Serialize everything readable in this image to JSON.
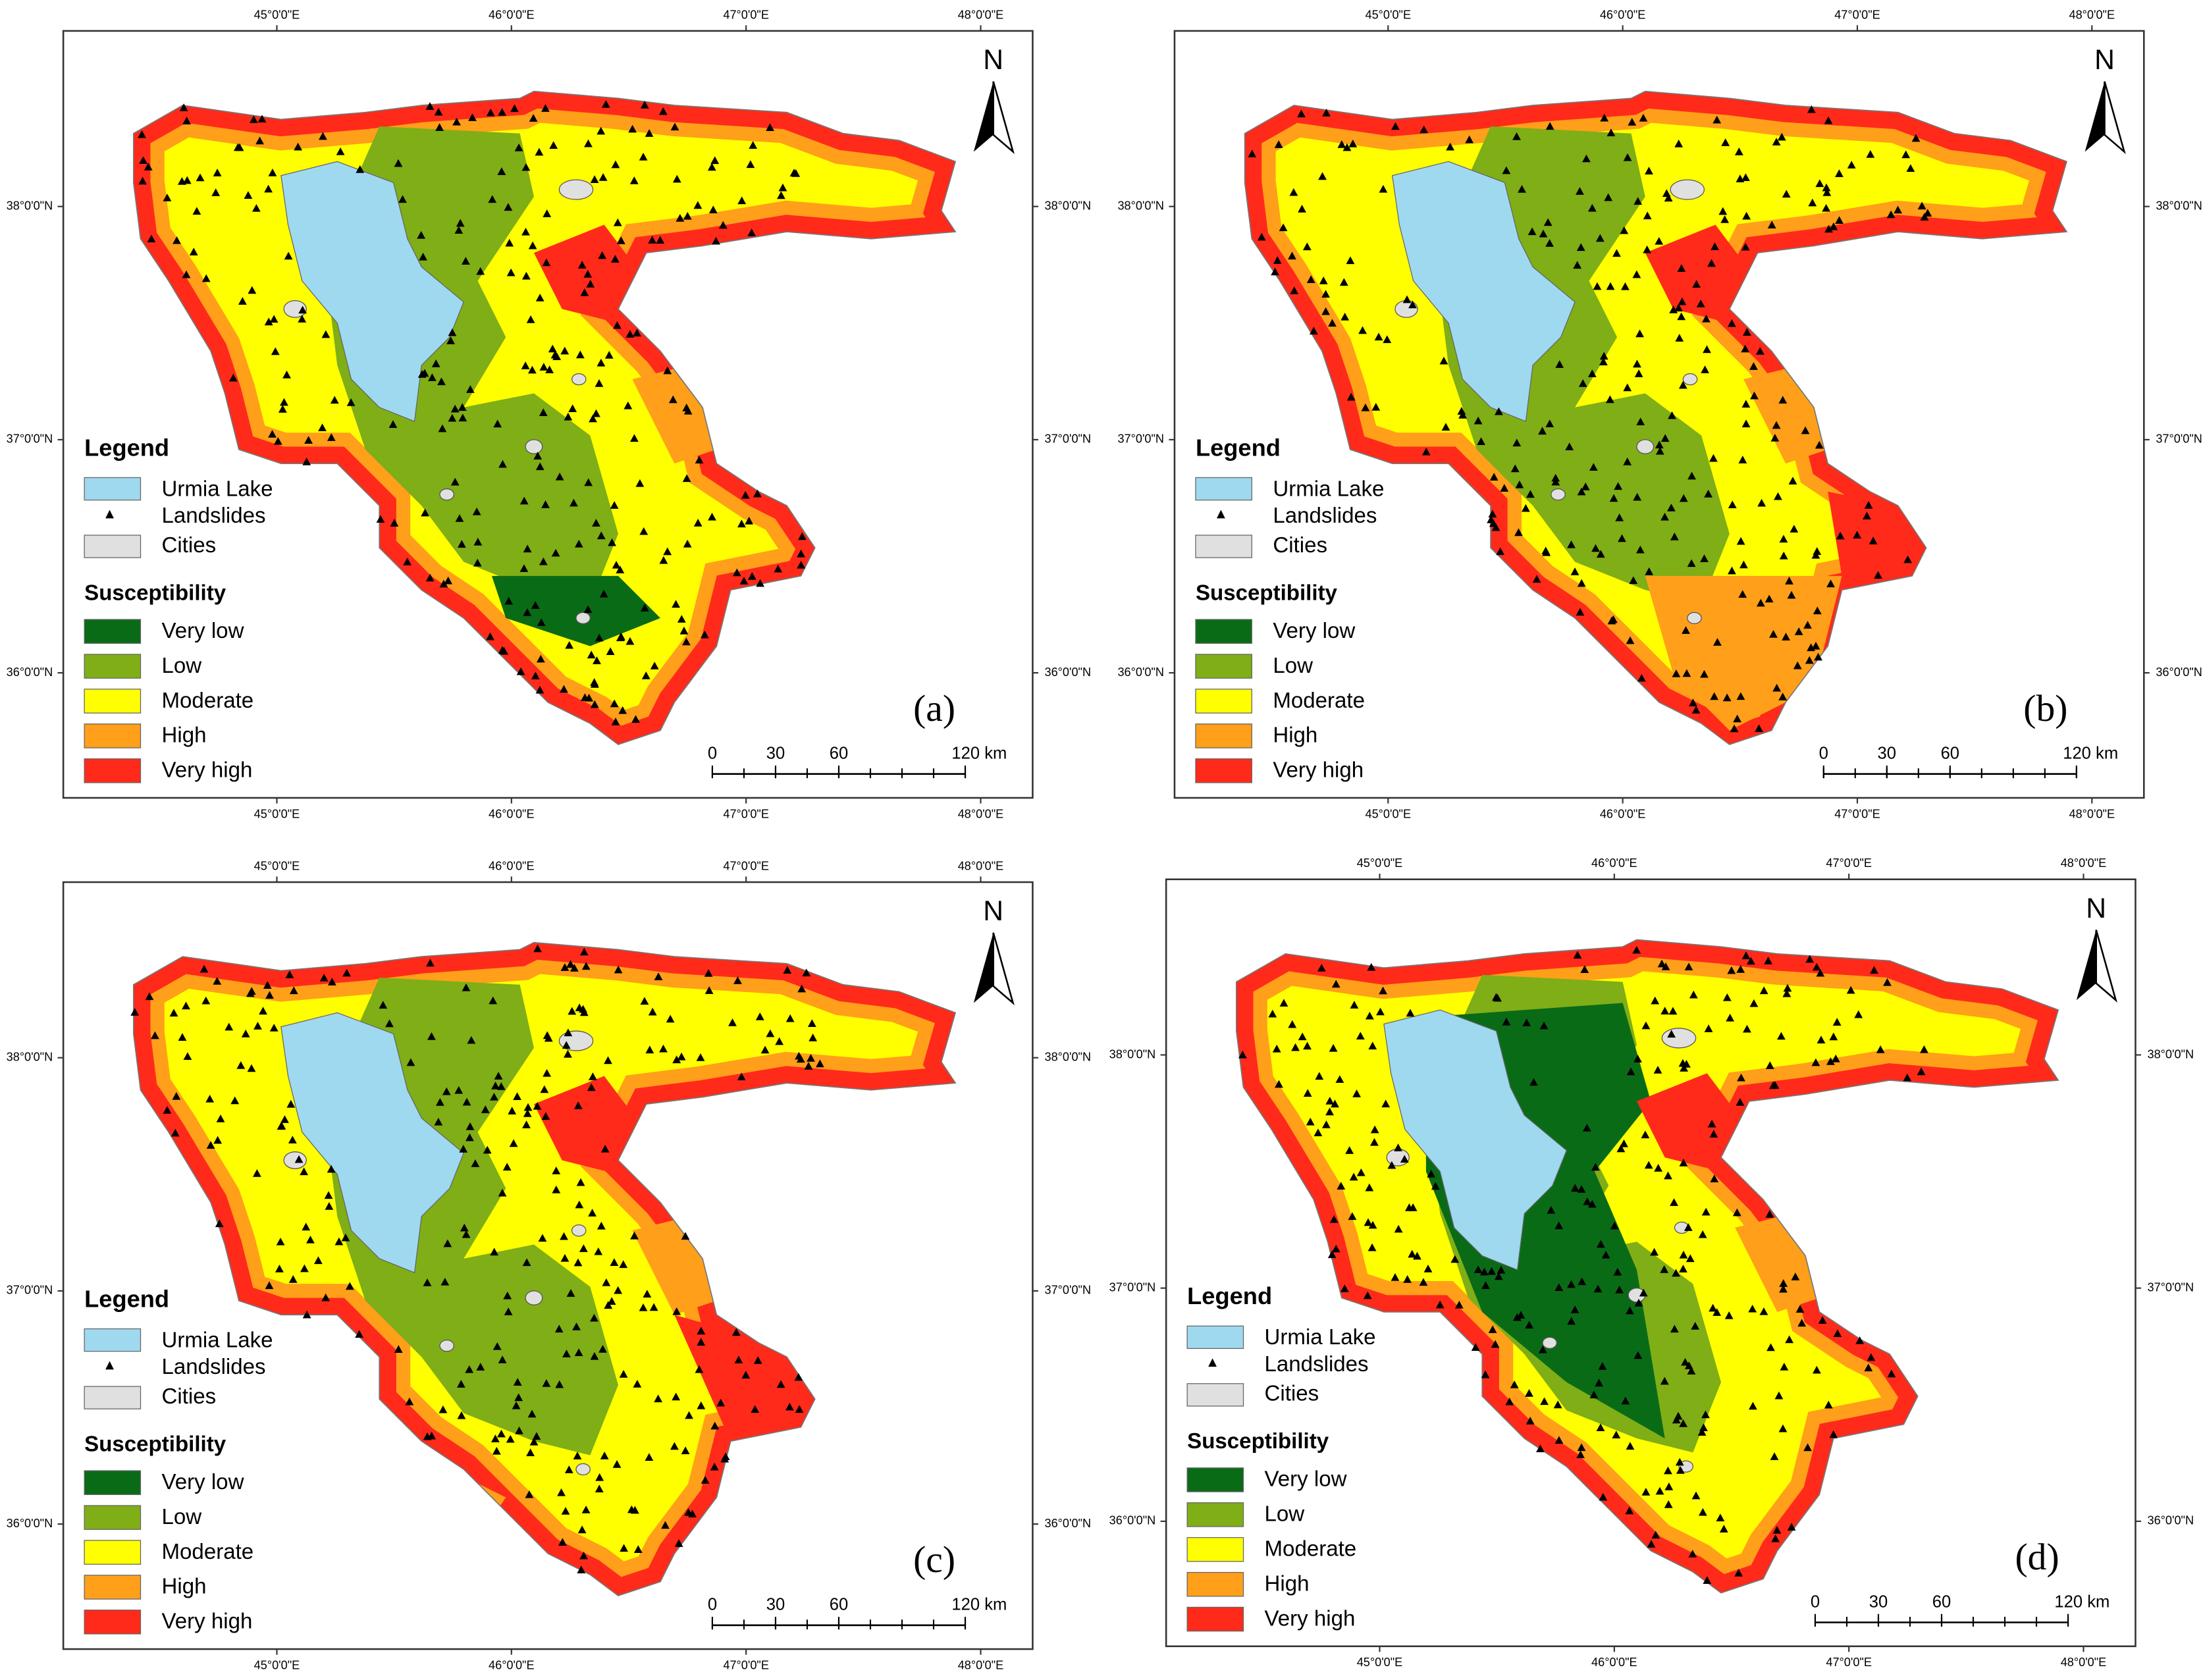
{
  "panels": [
    {
      "label": "(a)"
    },
    {
      "label": "(b)"
    },
    {
      "label": "(c)"
    },
    {
      "label": "(d)"
    }
  ],
  "map": {
    "longitude_ticks": [
      {
        "value": 45,
        "label": "45°0'0\"E"
      },
      {
        "value": 46,
        "label": "46°0'0\"E"
      },
      {
        "value": 47,
        "label": "47°0'0\"E"
      },
      {
        "value": 48,
        "label": "48°0'0\"E"
      }
    ],
    "latitude_ticks": [
      {
        "value": 38,
        "label": "38°0'0\"N"
      },
      {
        "value": 37,
        "label": "37°0'0\"N"
      },
      {
        "value": 36,
        "label": "36°0'0\"N"
      }
    ],
    "north": "N",
    "legend": {
      "title": "Legend",
      "lake": {
        "label": "Urmia Lake",
        "color": "#9fd9f0"
      },
      "landslides": {
        "label": "Landslides"
      },
      "cities": {
        "label": "Cities",
        "color": "#e0e0e0"
      },
      "susceptibility_title": "Susceptibility",
      "classes": [
        {
          "label": "Very low",
          "color": "#0a6b17"
        },
        {
          "label": "Low",
          "color": "#7fae16"
        },
        {
          "label": "Moderate",
          "color": "#ffff00"
        },
        {
          "label": "High",
          "color": "#ff9f1a"
        },
        {
          "label": "Very high",
          "color": "#ff2a1a"
        }
      ]
    },
    "scale_bar": {
      "ticks": [
        0,
        30,
        60,
        {
          "value": 120,
          "label": "120 km"
        }
      ]
    }
  }
}
